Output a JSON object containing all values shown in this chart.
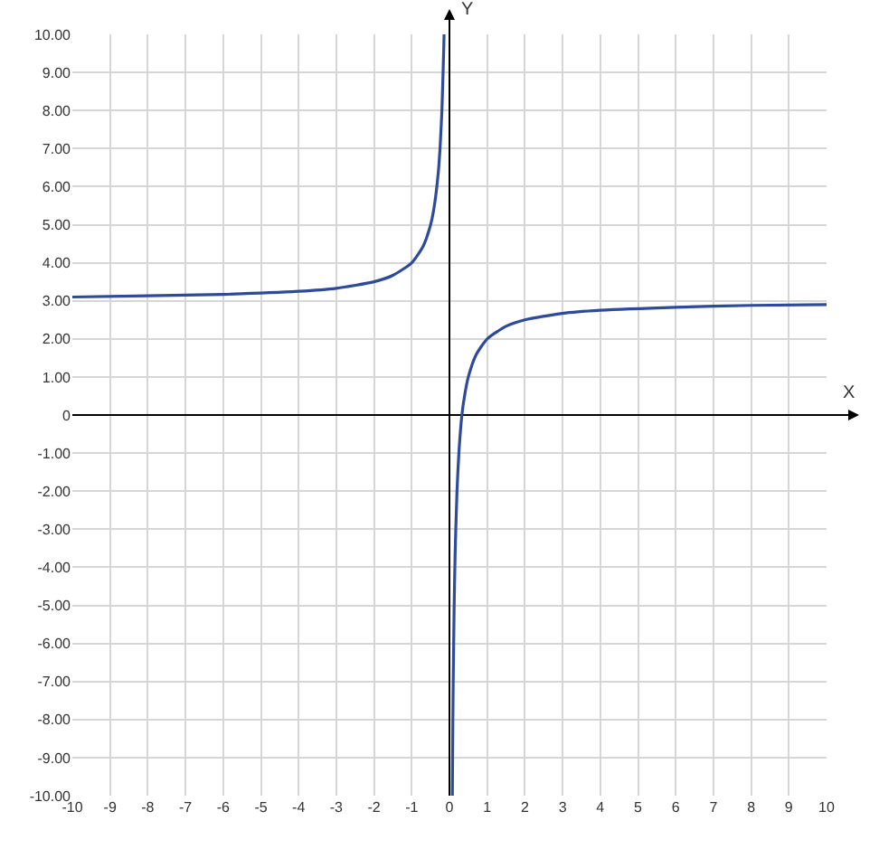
{
  "chart_data": {
    "type": "line",
    "xlabel": "X",
    "ylabel": "Y",
    "series": [
      {
        "color": "#2e4a9a",
        "x": [
          -10,
          -8,
          -6,
          -4,
          -3,
          -2,
          -1.5,
          -1,
          -0.7,
          -0.5,
          -0.4,
          -0.3,
          -0.25,
          -0.2,
          -0.15,
          -0.143
        ],
        "values": [
          3.1,
          3.13,
          3.17,
          3.25,
          3.33,
          3.5,
          3.67,
          4,
          4.43,
          5,
          5.5,
          6.33,
          7,
          8,
          9.67,
          10
        ]
      },
      {
        "color": "#2e4a9a",
        "x": [
          0.077,
          0.09,
          0.1,
          0.125,
          0.15,
          0.2,
          0.25,
          0.33,
          0.4,
          0.5,
          0.7,
          1,
          1.5,
          2,
          3,
          4,
          6,
          8,
          10
        ],
        "values": [
          -10,
          -8.1,
          -7,
          -5,
          -3.67,
          -2,
          -1,
          0,
          0.5,
          1,
          1.57,
          2,
          2.33,
          2.5,
          2.67,
          2.75,
          2.83,
          2.88,
          2.9
        ]
      }
    ],
    "xlim": [
      -10,
      10
    ],
    "ylim": [
      -10,
      10
    ],
    "xticks": [
      -10,
      -9,
      -8,
      -7,
      -6,
      -5,
      -4,
      -3,
      -2,
      -1,
      0,
      1,
      2,
      3,
      4,
      5,
      6,
      7,
      8,
      9,
      10
    ],
    "yticks": [
      {
        "value": 10,
        "label": "10.00"
      },
      {
        "value": 9,
        "label": "9.00"
      },
      {
        "value": 8,
        "label": "8.00"
      },
      {
        "value": 7,
        "label": "7.00"
      },
      {
        "value": 6,
        "label": "6.00"
      },
      {
        "value": 5,
        "label": "5.00"
      },
      {
        "value": 4,
        "label": "4.00"
      },
      {
        "value": 3,
        "label": "3.00"
      },
      {
        "value": 2,
        "label": "2.00"
      },
      {
        "value": 1,
        "label": "1.00"
      },
      0,
      {
        "value": -1,
        "label": "-1.00"
      },
      {
        "value": -2,
        "label": "-2.00"
      },
      {
        "value": -3,
        "label": "-3.00"
      },
      {
        "value": -4,
        "label": "-4.00"
      },
      {
        "value": -5,
        "label": "-5.00"
      },
      {
        "value": -6,
        "label": "-6.00"
      },
      {
        "value": -7,
        "label": "-7.00"
      },
      {
        "value": -8,
        "label": "-8.00"
      },
      {
        "value": -9,
        "label": "-9.00"
      },
      {
        "value": -10,
        "label": "-10.00"
      }
    ],
    "grid": true,
    "marker": "none",
    "line_style": "solid"
  }
}
